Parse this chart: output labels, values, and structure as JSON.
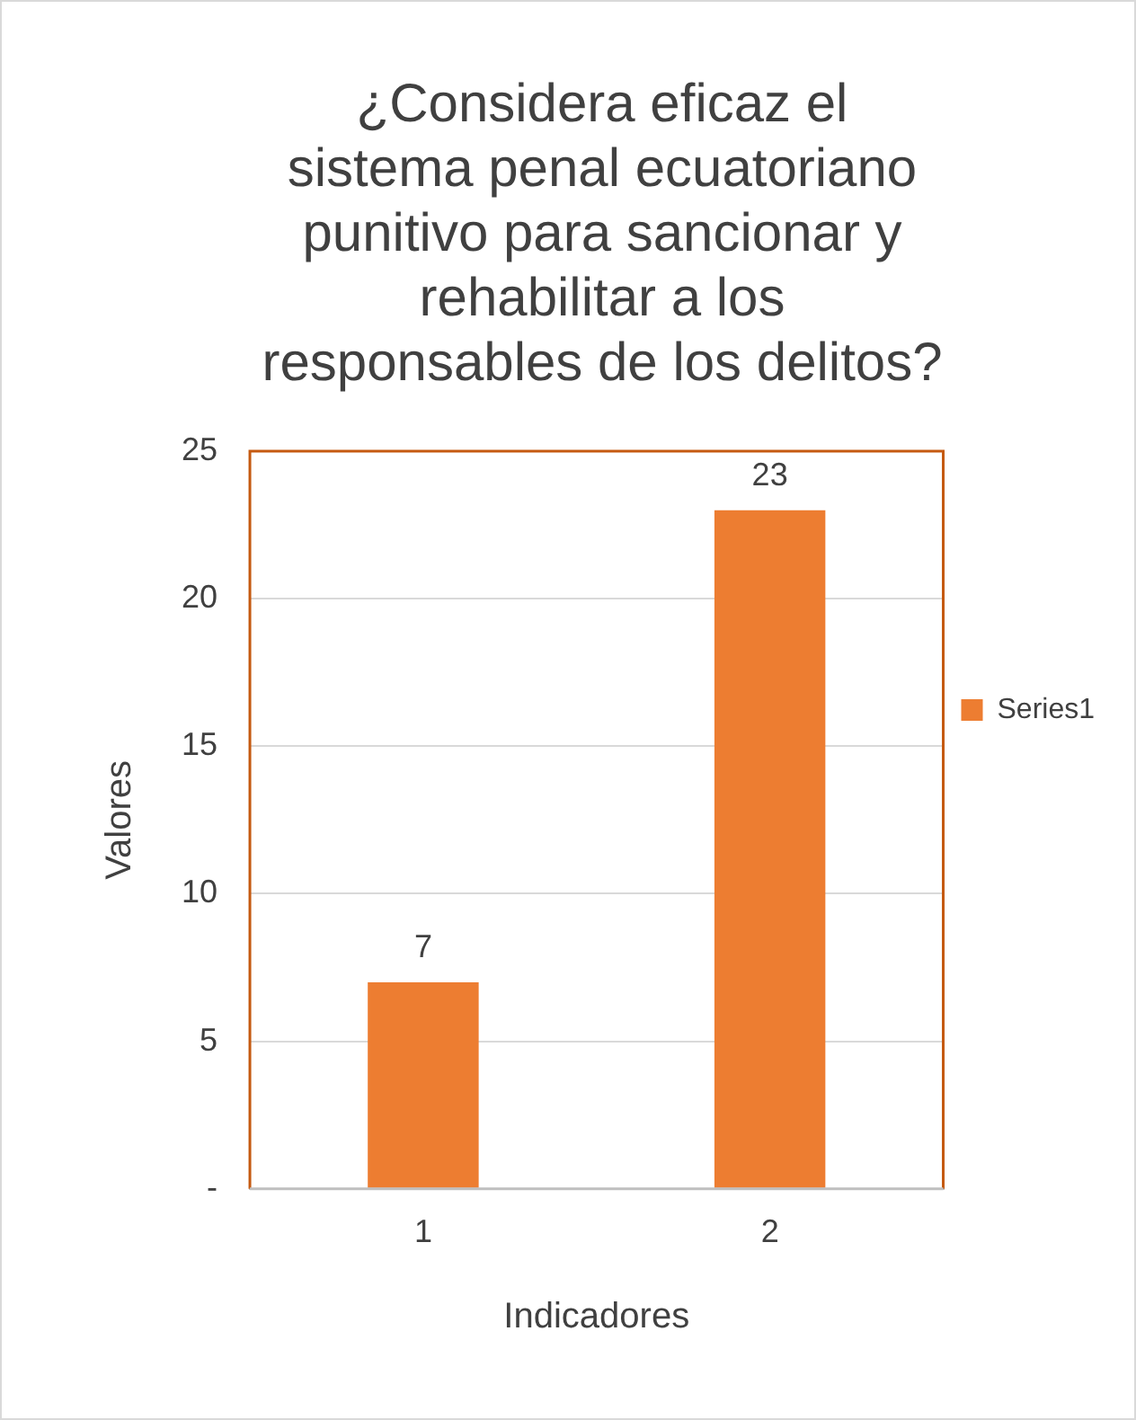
{
  "chart_data": {
    "type": "bar",
    "title": "¿Considera eficaz el sistema penal ecuatoriano punitivo para sancionar y rehabilitar a los responsables de los delitos?",
    "xlabel": "Indicadores",
    "ylabel": "Valores",
    "categories": [
      "1",
      "2"
    ],
    "series": [
      {
        "name": "Series1",
        "color": "#ed7d31",
        "values": [
          7,
          23
        ]
      }
    ],
    "ylim": [
      0,
      25
    ],
    "yticks": [
      {
        "value": 0,
        "label": "-"
      },
      5,
      10,
      15,
      20,
      25
    ],
    "grid": "y",
    "legend": "right",
    "data_labels": true
  }
}
